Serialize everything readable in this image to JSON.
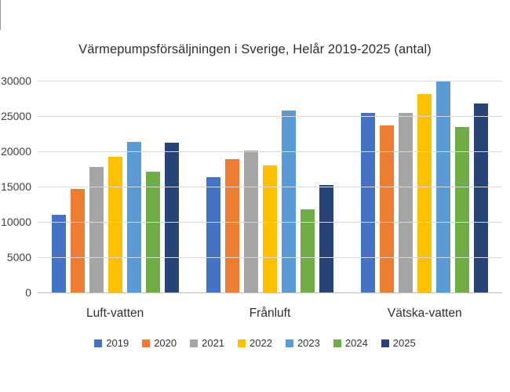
{
  "title": "Värmepumpsförsäljningen i Sverige, Helår 2019-2025 (antal)",
  "chart_data": {
    "type": "bar",
    "title": "Värmepumpsförsäljningen i Sverige, Helår 2019-2025 (antal)",
    "categories": [
      "Luft-vatten",
      "Frånluft",
      "Vätska-vatten"
    ],
    "series": [
      {
        "name": "2019",
        "color": "#4472C4",
        "values": [
          11000,
          16300,
          25400
        ]
      },
      {
        "name": "2020",
        "color": "#ED7D31",
        "values": [
          14700,
          18900,
          23700
        ]
      },
      {
        "name": "2021",
        "color": "#A5A5A5",
        "values": [
          17800,
          20100,
          25500
        ]
      },
      {
        "name": "2022",
        "color": "#FFC000",
        "values": [
          19200,
          18000,
          28100
        ]
      },
      {
        "name": "2023",
        "color": "#5B9BD5",
        "values": [
          21300,
          25800,
          30000
        ]
      },
      {
        "name": "2024",
        "color": "#70AD47",
        "values": [
          17100,
          11800,
          23500
        ]
      },
      {
        "name": "2025",
        "color": "#264478",
        "values": [
          21200,
          15200,
          26800
        ]
      }
    ],
    "xlabel": "",
    "ylabel": "",
    "ylim": [
      0,
      30000
    ],
    "yticks": [
      0,
      5000,
      10000,
      15000,
      20000,
      25000,
      30000
    ],
    "grid": true,
    "legend_position": "bottom"
  },
  "colors": {
    "grid": "#D9D9D9",
    "zero_axis": "#BDBDBD",
    "tick_text": "#404040",
    "title_text": "#2F2F2F"
  }
}
